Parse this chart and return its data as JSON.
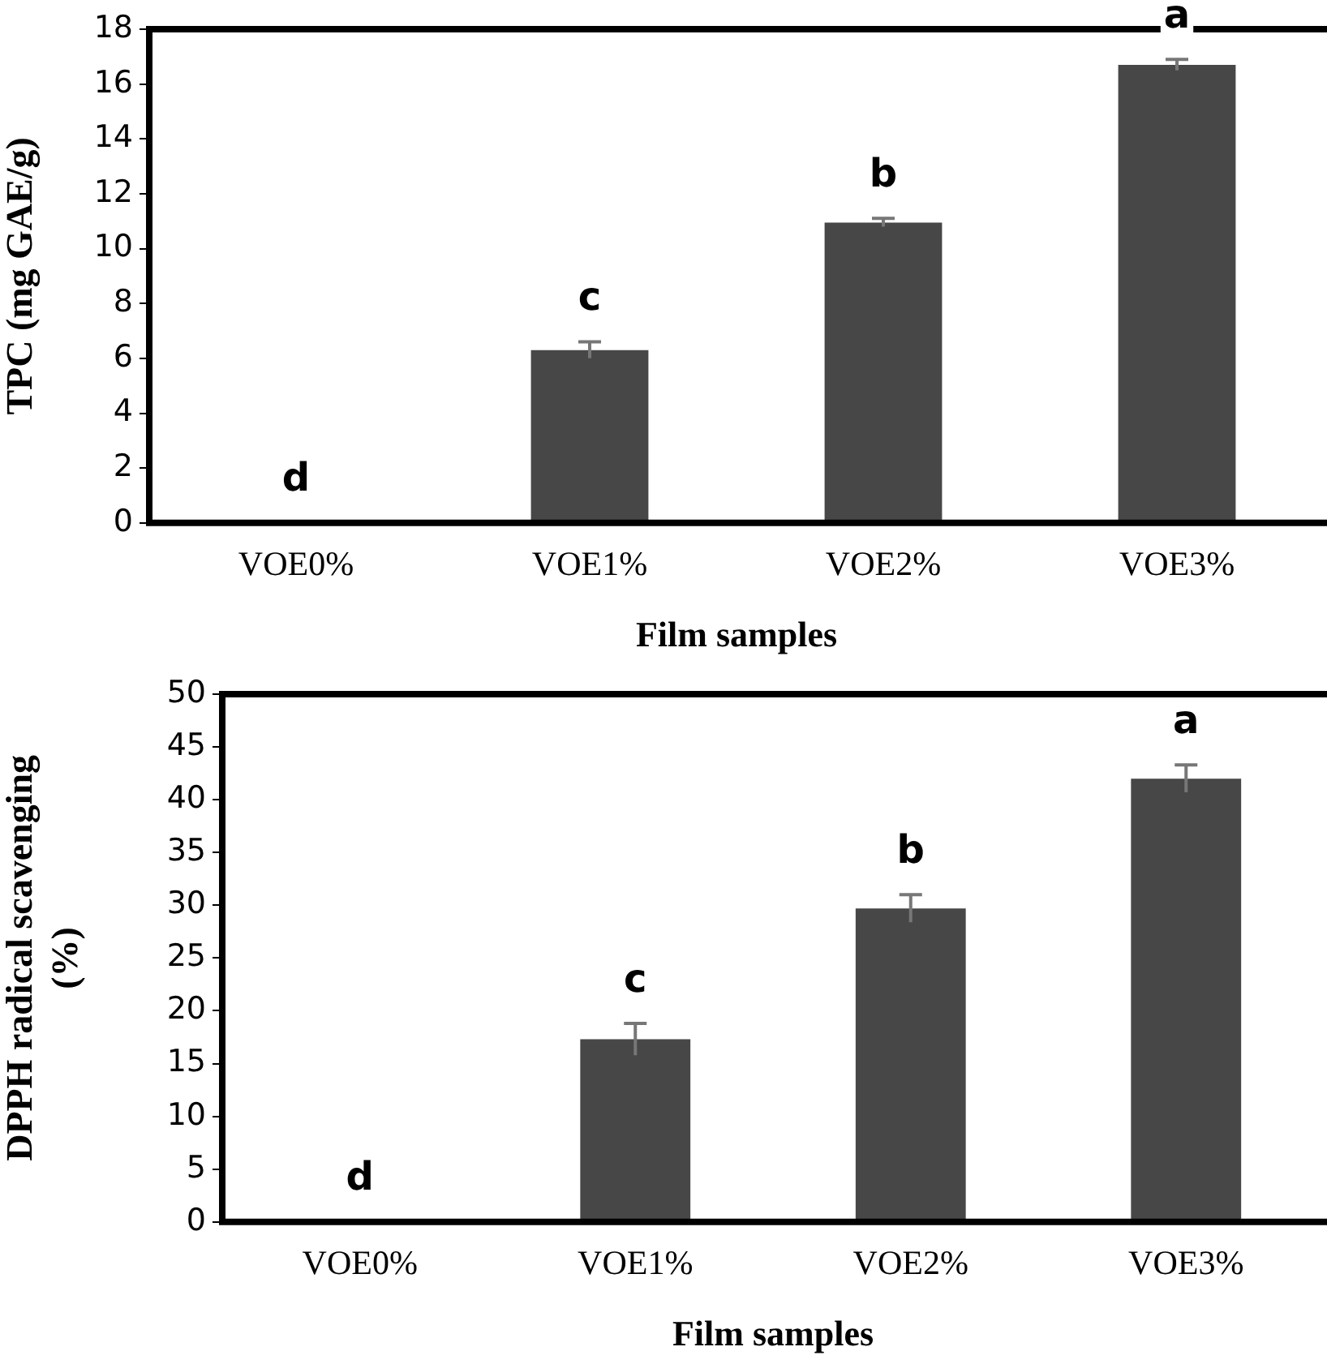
{
  "chart_data": [
    {
      "type": "bar",
      "xlabel": "Film samples",
      "ylabel": "TPC (mg GAE/g)",
      "categories": [
        "VOE0%",
        "VOE1%",
        "VOE2%",
        "VOE3%"
      ],
      "values": [
        0,
        6.3,
        10.95,
        16.7
      ],
      "errors": [
        null,
        0.3,
        0.15,
        0.2
      ],
      "color": "#474747",
      "ylim": [
        0,
        18
      ],
      "yticks": [
        0,
        2,
        4,
        6,
        8,
        10,
        12,
        14,
        16,
        18
      ],
      "annotations": [
        {
          "text": "d",
          "x": "VOE0%",
          "y": 0
        },
        {
          "text": "c",
          "x": "VOE1%",
          "y": 6.3
        },
        {
          "text": "b",
          "x": "VOE2%",
          "y": 10.95
        },
        {
          "text": "a",
          "x": "VOE3%",
          "y": 16.7
        }
      ]
    },
    {
      "type": "bar",
      "xlabel": "Film samples",
      "ylabel": "DPPH radical scavenging (%)",
      "categories": [
        "VOE0%",
        "VOE1%",
        "VOE2%",
        "VOE3%"
      ],
      "values": [
        0,
        17.3,
        29.7,
        42
      ],
      "errors": [
        null,
        1.5,
        1.3,
        1.3
      ],
      "color": "#474747",
      "ylim": [
        0,
        50
      ],
      "yticks": [
        0,
        5,
        10,
        15,
        20,
        25,
        30,
        35,
        40,
        45,
        50
      ],
      "annotations": [
        {
          "text": "d",
          "x": "VOE0%",
          "y": 0
        },
        {
          "text": "c",
          "x": "VOE1%",
          "y": 17.3
        },
        {
          "text": "b",
          "x": "VOE2%",
          "y": 29.7
        },
        {
          "text": "a",
          "x": "VOE3%",
          "y": 42
        }
      ]
    }
  ]
}
